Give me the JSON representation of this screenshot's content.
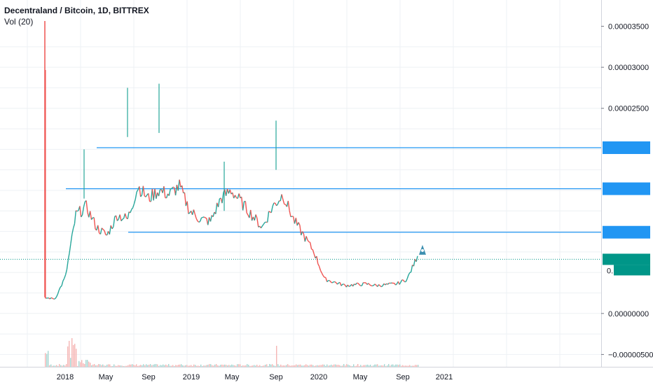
{
  "header": {
    "title": "Decentraland / Bitcoin, 1D, BITTREX",
    "volume_label": "Vol (20)"
  },
  "colors": {
    "up": "#26a69a",
    "down": "#ef5350",
    "level_line": "#2196f3",
    "price_line": "#009688",
    "rocket": "#3d8fb0",
    "grid": "#eef1f4",
    "axis_text": "#131722"
  },
  "chart_data": {
    "type": "line",
    "title": "Decentraland / Bitcoin, 1D, BITTREX",
    "ylim": [
      -6.5e-06,
      3.82e-05
    ],
    "y_ticks": [
      {
        "value": -5e-06,
        "label": "−0.00000500"
      },
      {
        "value": 0.0,
        "label": "0.00000000"
      },
      {
        "value": 2.5e-05,
        "label": "0.00002500"
      },
      {
        "value": 3e-05,
        "label": "0.00003000"
      },
      {
        "value": 3.5e-05,
        "label": "0.00003500"
      }
    ],
    "x_ticks": [
      "2018",
      "May",
      "Sep",
      "2019",
      "May",
      "Sep",
      "2020",
      "May",
      "Sep",
      "2021"
    ],
    "x": [
      "2017-10",
      "2017-11",
      "2017-12",
      "2018-01",
      "2018-02",
      "2018-03",
      "2018-04",
      "2018-05",
      "2018-06",
      "2018-07",
      "2018-08",
      "2018-09",
      "2018-10",
      "2018-11",
      "2018-12",
      "2019-01",
      "2019-02",
      "2019-03",
      "2019-04",
      "2019-05",
      "2019-06",
      "2019-07",
      "2019-08",
      "2019-09",
      "2019-10",
      "2019-11",
      "2019-12",
      "2020-01",
      "2020-02",
      "2020-03",
      "2020-04",
      "2020-05",
      "2020-06",
      "2020-07",
      "2020-08",
      "2020-09",
      "2020-10"
    ],
    "series": [
      {
        "values": [
          1.9e-06,
          1.8e-06,
          4.5e-06,
          1.2e-05,
          1.3e-05,
          1.05e-05,
          9.5e-06,
          1.2e-05,
          1.15e-05,
          1.55e-05,
          1.4e-05,
          1.5e-05,
          1.45e-05,
          1.55e-05,
          1.25e-05,
          1.15e-05,
          1.12e-05,
          1.4e-05,
          1.5e-05,
          1.35e-05,
          1.2e-05,
          1.05e-05,
          1.3e-05,
          1.45e-05,
          1.15e-05,
          9.5e-06,
          7.5e-06,
          4.2e-06,
          3.8e-06,
          3.4e-06,
          3.5e-06,
          3.6e-06,
          3.4e-06,
          3.5e-06,
          3.6e-06,
          4.2e-06,
          7e-06
        ]
      }
    ],
    "horizontal_levels": [
      2.02e-05,
      1.52e-05,
      9.9e-06
    ],
    "current_price": 6.6e-06,
    "current_price_label": "0."
  }
}
